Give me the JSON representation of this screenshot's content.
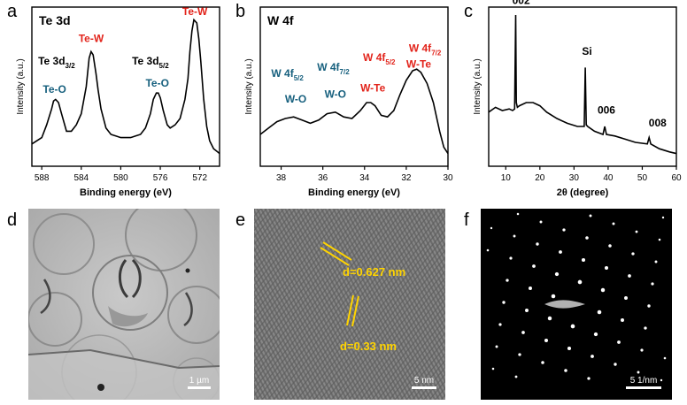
{
  "panel_letters": {
    "a": "a",
    "b": "b",
    "c": "c",
    "d": "d",
    "e": "e",
    "f": "f"
  },
  "colors": {
    "te_w": "#e2231a",
    "w_o": "#17607e",
    "w_te": "#e2231a",
    "axis": "#000000",
    "micro_e_text": "#ffd400"
  },
  "chart_data": [
    {
      "type": "line",
      "panel": "a",
      "title": "Te 3d",
      "xlabel": "Binding energy (eV)",
      "ylabel": "Intensity (a.u.)",
      "x_ticks": [
        588,
        584,
        580,
        576,
        572
      ],
      "xlim": [
        589,
        570
      ],
      "grid": false,
      "series": [
        {
          "x": [
            589,
            588,
            587.5,
            587,
            586.8,
            586.6,
            586.3,
            586,
            585.5,
            585,
            584.5,
            584,
            583.5,
            583.2,
            583,
            582.8,
            582.5,
            582.3,
            582,
            581.5,
            581,
            580.5,
            580,
            579.5,
            579,
            578.5,
            578,
            577.5,
            577,
            576.7,
            576.4,
            576.2,
            576,
            575.7,
            575.3,
            575,
            574.5,
            574,
            573.5,
            573.2,
            573,
            572.8,
            572.6,
            572.3,
            572.1,
            571.9,
            571.6,
            571.3,
            571,
            570.6,
            570.2,
            570
          ],
          "y": [
            0.14,
            0.18,
            0.26,
            0.36,
            0.41,
            0.42,
            0.4,
            0.33,
            0.22,
            0.22,
            0.26,
            0.33,
            0.5,
            0.68,
            0.72,
            0.7,
            0.58,
            0.48,
            0.36,
            0.24,
            0.2,
            0.19,
            0.18,
            0.18,
            0.18,
            0.19,
            0.2,
            0.24,
            0.33,
            0.42,
            0.46,
            0.46,
            0.43,
            0.35,
            0.26,
            0.24,
            0.26,
            0.3,
            0.42,
            0.55,
            0.72,
            0.85,
            0.92,
            0.9,
            0.8,
            0.66,
            0.42,
            0.25,
            0.16,
            0.11,
            0.09,
            0.08
          ]
        }
      ],
      "annotations": [
        {
          "text": "Te-W",
          "color": "#e2231a",
          "x": 583.0,
          "y": 0.78
        },
        {
          "text": "Te 3d",
          "sub": "3/2",
          "color": "#000000",
          "x": 586.5,
          "y": 0.64
        },
        {
          "text": "Te 3d",
          "sub": "5/2",
          "color": "#000000",
          "x": 577.0,
          "y": 0.64
        },
        {
          "text": "Te-O",
          "color": "#17607e",
          "x": 586.7,
          "y": 0.46
        },
        {
          "text": "Te-O",
          "color": "#17607e",
          "x": 576.3,
          "y": 0.5
        },
        {
          "text": "Te-W",
          "color": "#e2231a",
          "x": 572.5,
          "y": 0.95
        }
      ]
    },
    {
      "type": "line",
      "panel": "b",
      "title": "W 4f",
      "xlabel": "Binding energy (eV)",
      "ylabel": "Intensity (a.u.)",
      "x_ticks": [
        38,
        36,
        34,
        32,
        30
      ],
      "xlim": [
        39,
        30
      ],
      "grid": false,
      "series": [
        {
          "x": [
            39,
            38.6,
            38.2,
            37.8,
            37.4,
            37,
            36.6,
            36.2,
            35.8,
            35.4,
            35,
            34.6,
            34.2,
            33.9,
            33.7,
            33.5,
            33.2,
            32.9,
            32.6,
            32.3,
            32,
            31.7,
            31.5,
            31.3,
            31,
            30.7,
            30.4,
            30.2,
            30
          ],
          "y": [
            0.2,
            0.24,
            0.28,
            0.3,
            0.31,
            0.29,
            0.27,
            0.29,
            0.33,
            0.34,
            0.31,
            0.3,
            0.35,
            0.4,
            0.4,
            0.38,
            0.32,
            0.31,
            0.35,
            0.45,
            0.54,
            0.6,
            0.61,
            0.59,
            0.52,
            0.4,
            0.22,
            0.12,
            0.08
          ]
        }
      ],
      "annotations": [
        {
          "text": "W 4f",
          "sub": "5/2",
          "color": "#17607e",
          "x": 37.7,
          "y": 0.56
        },
        {
          "text": "W 4f",
          "sub": "7/2",
          "color": "#17607e",
          "x": 35.5,
          "y": 0.6
        },
        {
          "text": "W 4f",
          "sub": "5/2",
          "color": "#e2231a",
          "x": 33.3,
          "y": 0.66
        },
        {
          "text": "W 4f",
          "sub": "7/2",
          "color": "#e2231a",
          "x": 31.1,
          "y": 0.72
        },
        {
          "text": "W-O",
          "color": "#17607e",
          "x": 37.3,
          "y": 0.4
        },
        {
          "text": "W-O",
          "color": "#17607e",
          "x": 35.4,
          "y": 0.43
        },
        {
          "text": "W-Te",
          "color": "#e2231a",
          "x": 33.6,
          "y": 0.47
        },
        {
          "text": "W-Te",
          "color": "#e2231a",
          "x": 31.4,
          "y": 0.62
        }
      ]
    },
    {
      "type": "line",
      "panel": "c",
      "xlabel": "2θ (degree)",
      "ylabel": "Intensity (a.u.)",
      "x_ticks": [
        10,
        20,
        30,
        40,
        50,
        60
      ],
      "xlim": [
        5,
        60
      ],
      "grid": false,
      "series": [
        {
          "x": [
            5,
            7,
            9,
            11,
            12,
            12.6,
            12.9,
            13.1,
            13.4,
            14,
            16,
            18,
            20,
            22,
            25,
            28,
            31,
            33,
            33.3,
            33.6,
            34,
            36,
            38.5,
            39,
            39.5,
            42,
            45,
            48,
            51.5,
            52,
            52.5,
            55,
            58,
            60
          ],
          "y": [
            0.34,
            0.37,
            0.35,
            0.36,
            0.35,
            0.36,
            0.95,
            0.4,
            0.37,
            0.38,
            0.4,
            0.4,
            0.38,
            0.34,
            0.3,
            0.27,
            0.25,
            0.25,
            0.62,
            0.26,
            0.25,
            0.22,
            0.2,
            0.25,
            0.2,
            0.19,
            0.17,
            0.15,
            0.14,
            0.18,
            0.14,
            0.11,
            0.09,
            0.08
          ]
        }
      ],
      "annotations": [
        {
          "text": "002",
          "color": "#000000",
          "x": 14.5,
          "y": 1.02
        },
        {
          "text": "Si",
          "color": "#000000",
          "x": 33.8,
          "y": 0.7
        },
        {
          "text": "006",
          "color": "#000000",
          "x": 39.5,
          "y": 0.33
        },
        {
          "text": "008",
          "color": "#000000",
          "x": 54.5,
          "y": 0.25
        }
      ]
    }
  ],
  "micrographs": {
    "d": {
      "scale_bar": "1 µm"
    },
    "e": {
      "scale_bar": "5 nm",
      "label1": "d=0.627 nm",
      "label2": "d=0.33 nm"
    },
    "f": {
      "scale_bar": "5 1/nm"
    }
  }
}
